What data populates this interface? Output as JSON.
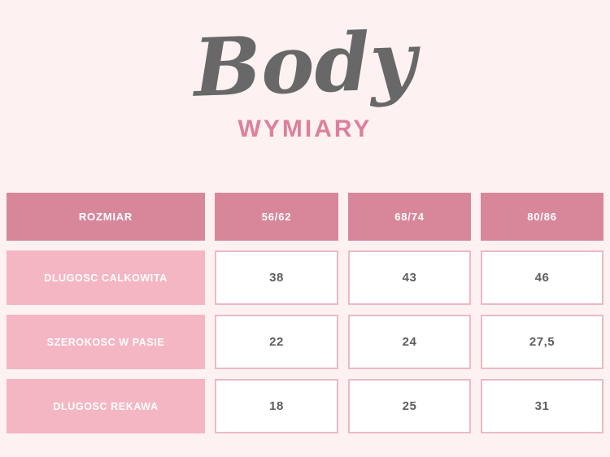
{
  "title": "Body",
  "subtitle": "WYMIARY",
  "colors": {
    "background": "#fdf2f1",
    "title_gray": "#686868",
    "subtitle_pink": "#dc8199",
    "header_cell": "#d8879b",
    "label_cell": "#f5b6c3",
    "value_border": "#ecb9c4",
    "value_text": "#5e5e5e",
    "cell_text": "#ffffff"
  },
  "chart_data": {
    "type": "table",
    "title": "Body",
    "subtitle": "WYMIARY",
    "columns": [
      "ROZMIAR",
      "56/62",
      "68/74",
      "80/86"
    ],
    "rows": [
      {
        "label": "DLUGOSC CALKOWITA",
        "values": [
          "38",
          "43",
          "46"
        ]
      },
      {
        "label": "SZEROKOSC W PASIE",
        "values": [
          "22",
          "24",
          "27,5"
        ]
      },
      {
        "label": "DLUGOSC REKAWA",
        "values": [
          "18",
          "25",
          "31"
        ]
      }
    ]
  }
}
